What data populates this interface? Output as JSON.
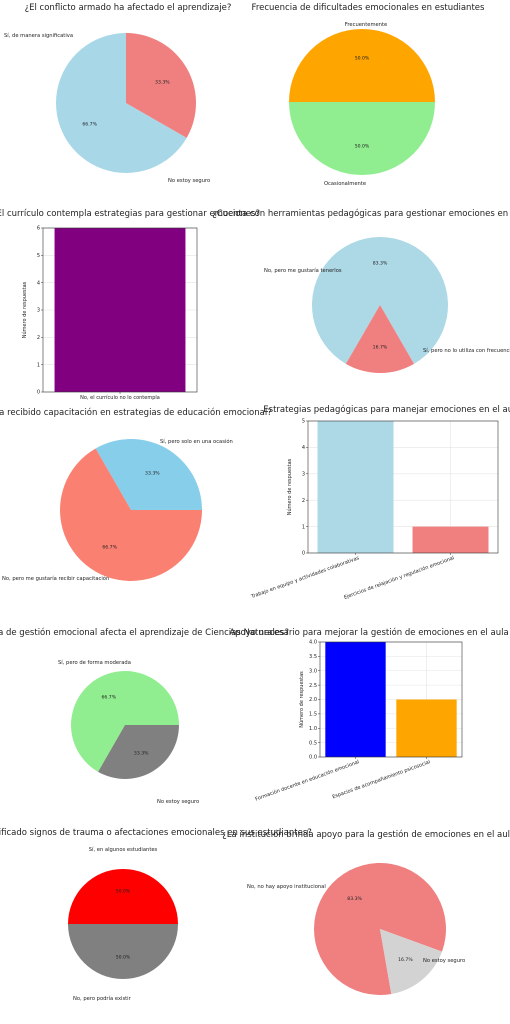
{
  "chart_data": [
    {
      "type": "pie",
      "title": "¿El conflicto armado ha afectado el aprendizaje?",
      "categories": [
        "Sí, de manera significativa",
        "No estoy seguro"
      ],
      "values": [
        66.7,
        33.3
      ],
      "value_labels": [
        "66.7%",
        "33.3%"
      ],
      "colors": [
        "#a8d8e8",
        "#f08080"
      ]
    },
    {
      "type": "pie",
      "title": "Frecuencia de dificultades emocionales en estudiantes",
      "categories": [
        "Frecuentemente",
        "Ocasionalmente"
      ],
      "values": [
        50.0,
        50.0
      ],
      "value_labels": [
        "50.0%",
        "50.0%"
      ],
      "colors": [
        "#90ee90",
        "#ffa500"
      ]
    },
    {
      "type": "bar",
      "title": "¿El currículo contempla estrategias para gestionar emociones?",
      "categories": [
        "No, el currículo no lo contempla"
      ],
      "values": [
        6
      ],
      "ylabel": "Número de respuestas",
      "ylim": [
        0,
        6
      ],
      "yticks": [
        "0",
        "1",
        "2",
        "3",
        "4",
        "5",
        "6"
      ],
      "grid": true,
      "colors": [
        "#800080"
      ]
    },
    {
      "type": "pie",
      "title": "¿Cuenta con herramientas pedagógicas para gestionar emociones en el aula?",
      "categories": [
        "No, pero me gustaría tenerlos",
        "Sí, pero no lo utiliza con frecuencia"
      ],
      "values": [
        83.3,
        16.7
      ],
      "value_labels": [
        "83.3%",
        "16.7%"
      ],
      "colors": [
        "#add8e6",
        "#f08080"
      ]
    },
    {
      "type": "pie",
      "title": "¿Ha recibido capacitación en estrategias de educación emocional?",
      "categories": [
        "Sí, pero solo en una ocasión",
        "No, pero me gustaría recibir capacitación"
      ],
      "values": [
        33.3,
        66.7
      ],
      "value_labels": [
        "33.3%",
        "66.7%"
      ],
      "colors": [
        "#87ceeb",
        "#fa8072"
      ]
    },
    {
      "type": "bar",
      "title": "Estrategias pedagógicas para manejar emociones en el aula",
      "categories": [
        "Trabajo en equipo y actividades colaborativas",
        "Ejercicios de relajación y regulación emocional"
      ],
      "values": [
        5,
        1
      ],
      "ylabel": "Número de respuestas",
      "ylim": [
        0,
        5
      ],
      "yticks": [
        "0",
        "1",
        "2",
        "3",
        "4",
        "5"
      ],
      "grid": true,
      "colors": [
        "#add8e6",
        "#f08080"
      ]
    },
    {
      "type": "pie",
      "title": "¿La falta de gestión emocional afecta el aprendizaje de Ciencias Naturales?",
      "categories": [
        "Sí, pero de forma moderada",
        "No estoy seguro"
      ],
      "values": [
        66.7,
        33.3
      ],
      "value_labels": [
        "66.7%",
        "33.3%"
      ],
      "colors": [
        "#90ee90",
        "#808080"
      ]
    },
    {
      "type": "bar",
      "title": "Apoyo necesario para mejorar la gestión de emociones en el aula",
      "categories": [
        "Formación docente en educación emocional",
        "Espacios de acompañamiento psicosocial"
      ],
      "values": [
        4,
        2
      ],
      "ylabel": "Número de respuestas",
      "ylim": [
        0,
        4
      ],
      "yticks": [
        "0.0",
        "0.5",
        "1.0",
        "1.5",
        "2.0",
        "2.5",
        "3.0",
        "3.5",
        "4.0"
      ],
      "grid": true,
      "colors": [
        "#0000ff",
        "#ffa500"
      ]
    },
    {
      "type": "pie",
      "title": "¿Ha identificado signos de trauma o afectaciones emocionales en sus estudiantes?",
      "categories": [
        "Sí, en algunos estudiantes",
        "No, pero podría existir"
      ],
      "values": [
        50.0,
        50.0
      ],
      "value_labels": [
        "50.0%",
        "50.0%"
      ],
      "colors": [
        "#ff0000",
        "#808080"
      ]
    },
    {
      "type": "pie",
      "title": "¿La institución brinda apoyo para la gestión de emociones en el aula?",
      "categories": [
        "No, no hay apoyo institucional",
        "No estoy seguro"
      ],
      "values": [
        83.3,
        16.7
      ],
      "value_labels": [
        "83.3%",
        "16.7%"
      ],
      "colors": [
        "#f08080",
        "#d3d3d3"
      ]
    }
  ]
}
